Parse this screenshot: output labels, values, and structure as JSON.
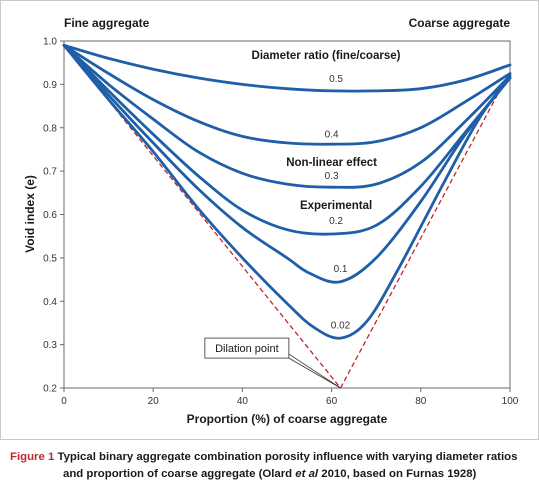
{
  "chart_data": {
    "type": "line",
    "xlabel": "Proportion (%) of coarse aggregate",
    "ylabel": "Void index (e)",
    "corner_left": "Fine aggregate",
    "corner_right": "Coarse aggregate",
    "legend_title": "Diameter ratio (fine/coarse)",
    "xlim": [
      0,
      100
    ],
    "ylim": [
      0.2,
      1.0
    ],
    "x_ticks": [
      "0",
      "20",
      "40",
      "60",
      "80",
      "100"
    ],
    "y_ticks": [
      "0.2",
      "0.3",
      "0.4",
      "0.5",
      "0.6",
      "0.7",
      "0.8",
      "0.9",
      "1.0"
    ],
    "grid": false,
    "series": [
      {
        "name": "0.5",
        "label_at": [
          61,
          0.905
        ],
        "color": "#1f5fa8",
        "x": [
          0,
          10,
          20,
          30,
          40,
          50,
          60,
          70,
          80,
          90,
          100
        ],
        "y": [
          0.99,
          0.96,
          0.935,
          0.915,
          0.9,
          0.89,
          0.885,
          0.885,
          0.89,
          0.91,
          0.945
        ]
      },
      {
        "name": "0.4",
        "label_at": [
          60,
          0.778
        ],
        "color": "#1f5fa8",
        "x": [
          0,
          10,
          20,
          30,
          40,
          50,
          60,
          70,
          80,
          90,
          100
        ],
        "y": [
          0.99,
          0.925,
          0.865,
          0.815,
          0.78,
          0.765,
          0.762,
          0.768,
          0.8,
          0.86,
          0.925
        ]
      },
      {
        "name": "0.3",
        "label_at": [
          60,
          0.682
        ],
        "color": "#1f5fa8",
        "x": [
          0,
          10,
          20,
          30,
          40,
          50,
          60,
          70,
          80,
          90,
          100
        ],
        "y": [
          0.99,
          0.9,
          0.82,
          0.745,
          0.695,
          0.67,
          0.663,
          0.67,
          0.72,
          0.815,
          0.92
        ]
      },
      {
        "name": "0.2",
        "label_at": [
          61,
          0.578
        ],
        "color": "#1f5fa8",
        "x": [
          0,
          10,
          20,
          30,
          40,
          50,
          60,
          70,
          80,
          90,
          100
        ],
        "y": [
          0.99,
          0.885,
          0.785,
          0.69,
          0.61,
          0.565,
          0.555,
          0.575,
          0.665,
          0.79,
          0.915
        ]
      },
      {
        "name": "0.1",
        "label_at": [
          62,
          0.468
        ],
        "color": "#1f5fa8",
        "x": [
          0,
          10,
          20,
          30,
          40,
          50,
          55,
          62,
          70,
          80,
          90,
          100
        ],
        "y": [
          0.99,
          0.875,
          0.765,
          0.66,
          0.57,
          0.5,
          0.465,
          0.445,
          0.5,
          0.63,
          0.785,
          0.915
        ]
      },
      {
        "name": "0.02",
        "label_at": [
          62,
          0.337
        ],
        "color": "#1f5fa8",
        "x": [
          0,
          10,
          20,
          30,
          40,
          50,
          56,
          62,
          68,
          75,
          85,
          93,
          100
        ],
        "y": [
          0.99,
          0.865,
          0.745,
          0.615,
          0.5,
          0.395,
          0.34,
          0.315,
          0.355,
          0.475,
          0.67,
          0.82,
          0.92
        ]
      }
    ],
    "reference_lines": [
      {
        "x": [
          0,
          62
        ],
        "y": [
          0.99,
          0.2
        ],
        "color": "#c0272d",
        "dash": true
      },
      {
        "x": [
          62,
          100
        ],
        "y": [
          0.2,
          0.93
        ],
        "color": "#c0272d",
        "dash": true
      }
    ],
    "annotations": [
      {
        "text": "Non-linear effect",
        "at": [
          60,
          0.712
        ]
      },
      {
        "text": "Experimental",
        "at": [
          61,
          0.613
        ]
      },
      {
        "text": "Dilation point",
        "box_at": [
          41,
          0.292
        ],
        "points_to": [
          62,
          0.2
        ]
      }
    ]
  },
  "caption": {
    "figure_number": "Figure 1",
    "text_line1": "Typical binary aggregate combination porosity influence with varying diameter ratios",
    "text_line2_a": "and proportion of coarse aggregate (Olard ",
    "text_line2_em": "et al",
    "text_line2_b": " 2010, based on Furnas 1928)"
  }
}
